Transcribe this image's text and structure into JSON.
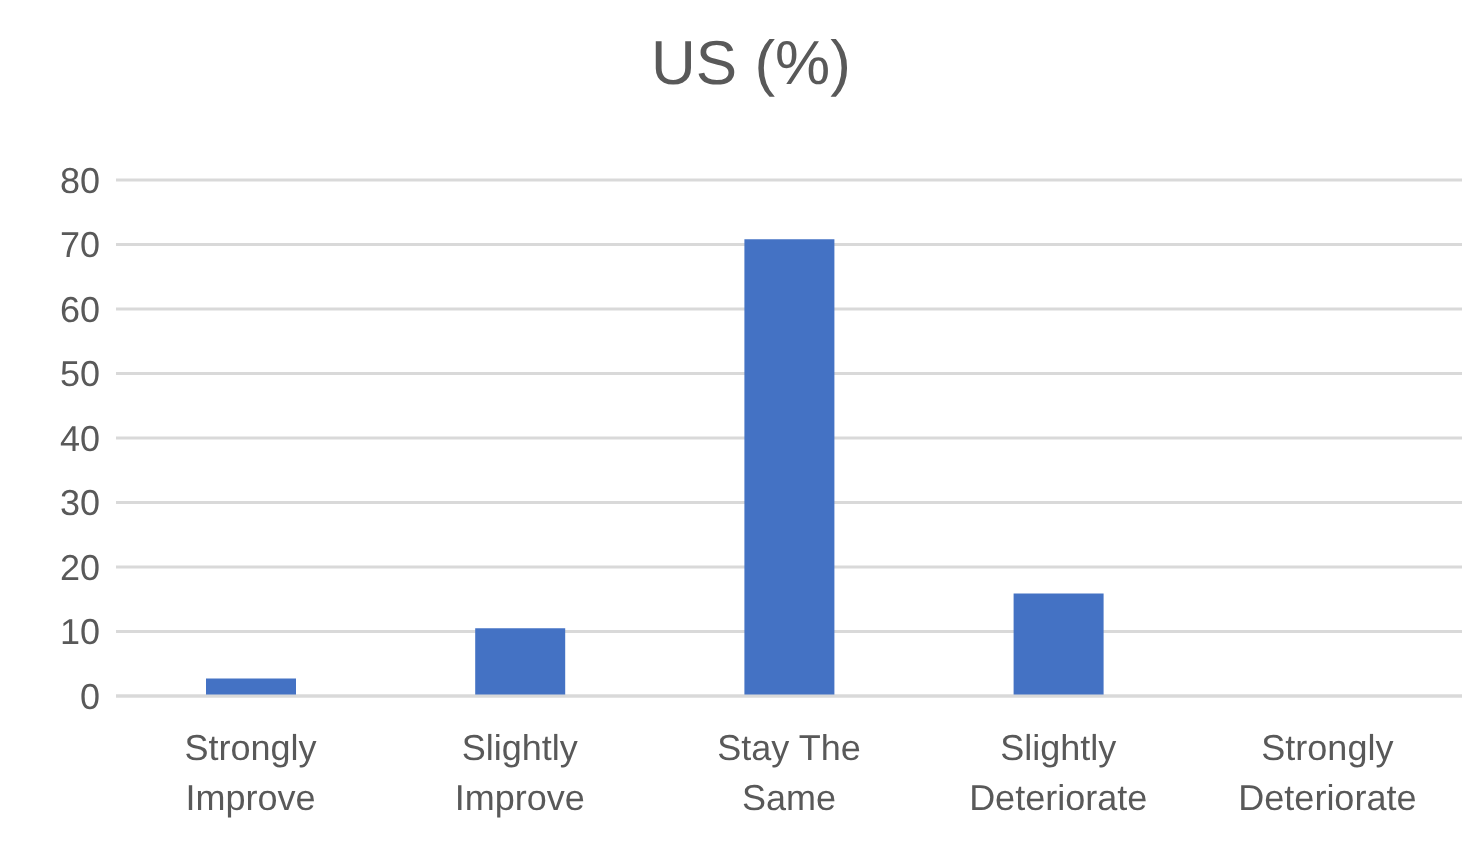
{
  "chart_data": {
    "type": "bar",
    "title": "US (%)",
    "categories": [
      "Strongly Improve",
      "Slightly Improve",
      "Stay The Same",
      "Slightly Deteriorate",
      "Strongly Deteriorate"
    ],
    "values": [
      2.7,
      10.5,
      70.8,
      15.9,
      0
    ],
    "color": "#4472c4",
    "ylim": [
      0,
      80
    ],
    "yticks": [
      0,
      10,
      20,
      30,
      40,
      50,
      60,
      70,
      80
    ],
    "grid": "y"
  }
}
